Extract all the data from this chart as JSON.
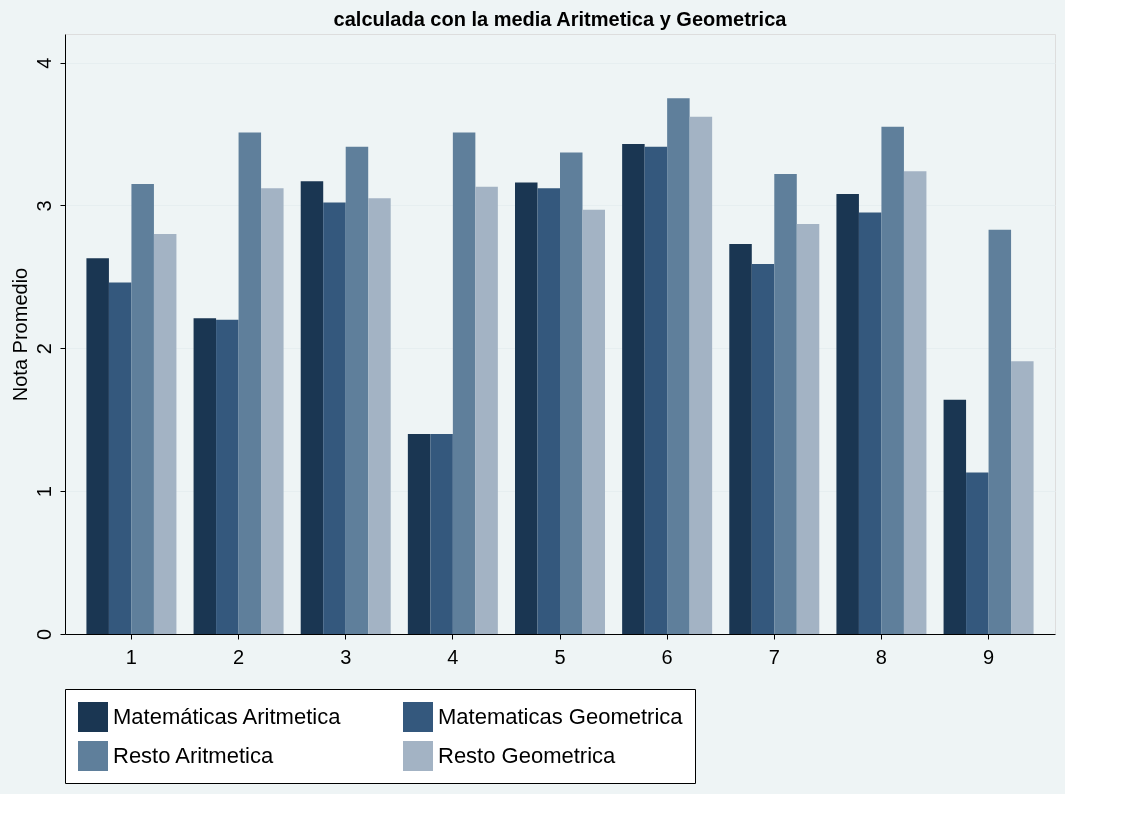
{
  "chart_data": {
    "type": "bar",
    "title": "calculada con la media Aritmetica y Geometrica",
    "ylabel": "Nota Promedio",
    "categories": [
      "1",
      "2",
      "3",
      "4",
      "5",
      "6",
      "7",
      "8",
      "9"
    ],
    "series": [
      {
        "name": "Matemáticas Aritmetica",
        "color": "#1a3652",
        "values": [
          2.63,
          2.21,
          3.17,
          1.4,
          3.16,
          3.43,
          2.73,
          3.08,
          1.64
        ]
      },
      {
        "name": "Matematicas Geometrica",
        "color": "#34587d",
        "values": [
          2.46,
          2.2,
          3.02,
          1.4,
          3.12,
          3.41,
          2.59,
          2.95,
          1.13
        ]
      },
      {
        "name": "Resto Aritmetica",
        "color": "#5f7f9b",
        "values": [
          3.15,
          3.51,
          3.41,
          3.51,
          3.37,
          3.75,
          3.22,
          3.55,
          2.83
        ]
      },
      {
        "name": "Resto Geometrica",
        "color": "#a3b3c4",
        "values": [
          2.8,
          3.12,
          3.05,
          3.13,
          2.97,
          3.62,
          2.87,
          3.24,
          1.91
        ]
      }
    ],
    "ylim": [
      0,
      4.2
    ],
    "yticks": [
      0,
      1,
      2,
      3,
      4
    ],
    "grid": "y",
    "legend": "bottom"
  }
}
